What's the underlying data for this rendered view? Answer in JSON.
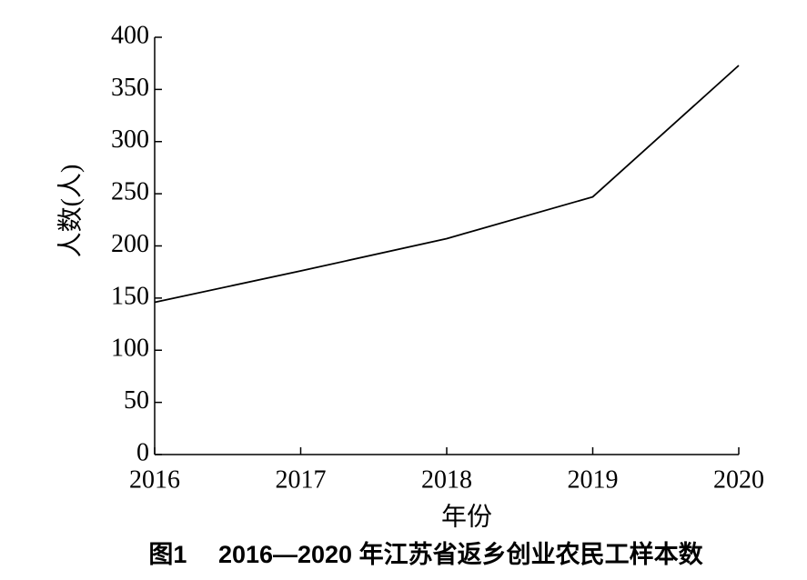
{
  "chart_data": {
    "type": "line",
    "title": "图1　 2016—2020 年江苏省返乡创业农民工样本数",
    "x_label": "年份",
    "y_label": "人数(人)",
    "x": [
      2016,
      2017,
      2018,
      2019,
      2020
    ],
    "series": [
      {
        "name": "样本数",
        "color": "#000000",
        "values": [
          146,
          176,
          207,
          247,
          373
        ]
      }
    ],
    "xlim": [
      2016,
      2020
    ],
    "xticks": [
      2016,
      2017,
      2018,
      2019,
      2020
    ],
    "ylim": [
      0,
      400
    ],
    "yticks": [
      0,
      50,
      100,
      150,
      200,
      250,
      300,
      350,
      400
    ],
    "grid": false
  }
}
